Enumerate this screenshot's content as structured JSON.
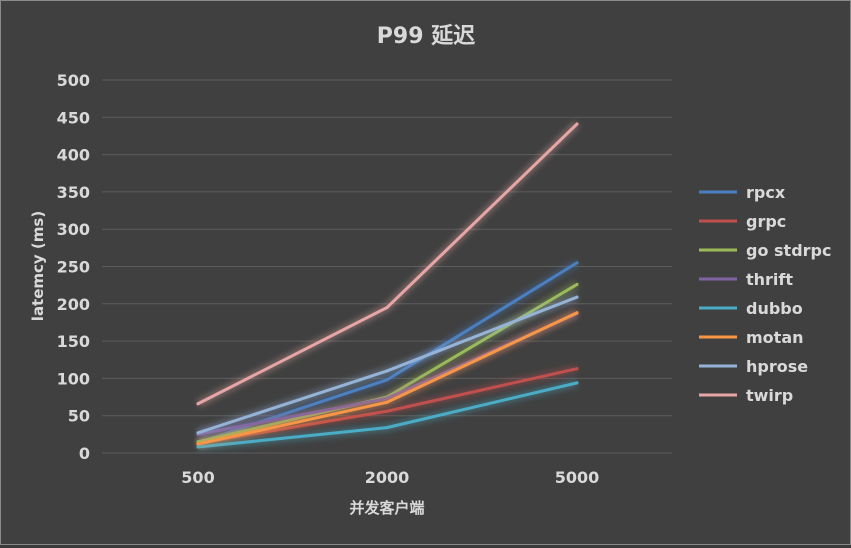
{
  "chart_data": {
    "type": "line",
    "title": "P99 延迟",
    "xlabel": "并发客户端",
    "ylabel": "latemcy  (ms)",
    "categories": [
      "500",
      "2000",
      "5000"
    ],
    "ylim": [
      0,
      500
    ],
    "yticks": [
      0,
      50,
      100,
      150,
      200,
      250,
      300,
      350,
      400,
      450,
      500
    ],
    "grid": true,
    "legend_position": "right",
    "series": [
      {
        "name": "rpcx",
        "color": "#4a7fc1",
        "values": [
          14,
          98,
          255
        ]
      },
      {
        "name": "grpc",
        "color": "#c0504d",
        "values": [
          13,
          56,
          113
        ]
      },
      {
        "name": "go stdrpc",
        "color": "#9bbb59",
        "values": [
          15,
          75,
          226
        ]
      },
      {
        "name": "thrift",
        "color": "#8064a2",
        "values": [
          25,
          73,
          187
        ]
      },
      {
        "name": "dubbo",
        "color": "#4bacc6",
        "values": [
          8,
          34,
          94
        ]
      },
      {
        "name": "motan",
        "color": "#f79646",
        "values": [
          12,
          68,
          188
        ]
      },
      {
        "name": "hprose",
        "color": "#95b3d7",
        "values": [
          27,
          110,
          209
        ]
      },
      {
        "name": "twirp",
        "color": "#e6a6a6",
        "values": [
          66,
          195,
          441
        ]
      }
    ]
  }
}
